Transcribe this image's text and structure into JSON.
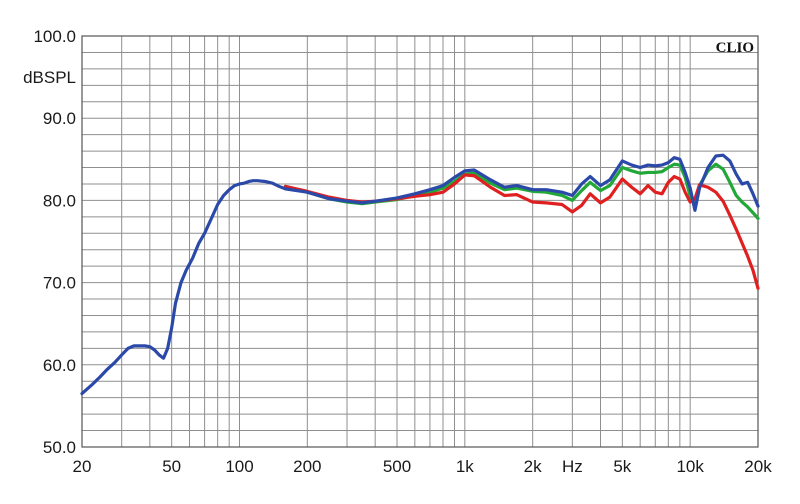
{
  "chart_data": {
    "type": "line",
    "title": "",
    "xlabel": "Hz",
    "ylabel": "dBSPL",
    "brand": "CLIO",
    "x_scale": "log",
    "xlim": [
      20,
      20000
    ],
    "ylim": [
      50,
      100
    ],
    "grid": true,
    "y_ticks": [
      {
        "value": 100,
        "label": "100.0"
      },
      {
        "value": 90,
        "label": "90.0"
      },
      {
        "value": 80,
        "label": "80.0"
      },
      {
        "value": 70,
        "label": "70.0"
      },
      {
        "value": 60,
        "label": "60.0"
      },
      {
        "value": 50,
        "label": "50.0"
      }
    ],
    "x_ticks": [
      {
        "value": 20,
        "label": "20"
      },
      {
        "value": 50,
        "label": "50"
      },
      {
        "value": 100,
        "label": "100"
      },
      {
        "value": 200,
        "label": "200"
      },
      {
        "value": 500,
        "label": "500"
      },
      {
        "value": 1000,
        "label": "1k"
      },
      {
        "value": 2000,
        "label": "2k"
      },
      {
        "value": 5000,
        "label": "5k"
      },
      {
        "value": 10000,
        "label": "10k"
      },
      {
        "value": 20000,
        "label": "20k"
      }
    ],
    "series": [
      {
        "color": "#22a838",
        "x": [
          160,
          200,
          250,
          300,
          350,
          400,
          500,
          600,
          700,
          800,
          900,
          1000,
          1100,
          1300,
          1500,
          1700,
          2000,
          2300,
          2700,
          3000,
          3300,
          3600,
          4000,
          4400,
          5000,
          5500,
          6000,
          6500,
          7000,
          7500,
          8000,
          8500,
          9000,
          9500,
          10000,
          10500,
          11000,
          12000,
          13000,
          14000,
          15000,
          16000,
          17000,
          18000,
          19000,
          20000
        ],
        "y": [
          81.7,
          81.0,
          80.2,
          79.8,
          79.6,
          79.8,
          80.1,
          80.6,
          81.0,
          81.5,
          82.3,
          83.2,
          83.3,
          82.1,
          81.3,
          81.5,
          81.1,
          81.0,
          80.6,
          80.0,
          81.2,
          82.2,
          81.2,
          81.8,
          84.0,
          83.6,
          83.3,
          83.4,
          83.4,
          83.5,
          84.0,
          84.4,
          84.3,
          82.8,
          80.5,
          79.5,
          81.8,
          83.6,
          84.4,
          83.8,
          82.2,
          80.6,
          79.8,
          79.2,
          78.5,
          77.8
        ]
      },
      {
        "color": "#e02020",
        "x": [
          160,
          200,
          250,
          300,
          350,
          400,
          500,
          600,
          700,
          800,
          900,
          1000,
          1100,
          1300,
          1500,
          1700,
          2000,
          2300,
          2700,
          3000,
          3300,
          3600,
          4000,
          4400,
          5000,
          5500,
          6000,
          6500,
          7000,
          7500,
          8000,
          8500,
          9000,
          9500,
          10000,
          10500,
          11000,
          12000,
          13000,
          14000,
          15000,
          16000,
          17000,
          18000,
          19000,
          20000
        ],
        "y": [
          81.7,
          81.1,
          80.4,
          80.0,
          79.8,
          79.9,
          80.2,
          80.5,
          80.7,
          81.0,
          82.0,
          83.1,
          83.0,
          81.6,
          80.6,
          80.7,
          79.8,
          79.7,
          79.5,
          78.6,
          79.4,
          80.8,
          79.7,
          80.4,
          82.6,
          81.6,
          80.8,
          81.8,
          81.0,
          80.8,
          82.2,
          82.9,
          82.6,
          81.0,
          79.8,
          80.2,
          81.9,
          81.6,
          81.0,
          79.9,
          78.2,
          76.5,
          74.8,
          73.2,
          71.5,
          69.3
        ]
      },
      {
        "color": "#2b49a8",
        "x": [
          20,
          22,
          24,
          26,
          28,
          30,
          32,
          34,
          36,
          38,
          40,
          42,
          44,
          46,
          48,
          50,
          52,
          55,
          58,
          62,
          66,
          70,
          75,
          80,
          85,
          90,
          95,
          100,
          105,
          110,
          115,
          120,
          130,
          140,
          150,
          160,
          200,
          250,
          300,
          350,
          400,
          500,
          600,
          700,
          800,
          900,
          1000,
          1100,
          1300,
          1500,
          1700,
          2000,
          2300,
          2700,
          3000,
          3300,
          3600,
          4000,
          4400,
          5000,
          5500,
          6000,
          6500,
          7000,
          7500,
          8000,
          8500,
          9000,
          9500,
          10000,
          10500,
          11000,
          12000,
          13000,
          14000,
          15000,
          16000,
          17000,
          18000,
          19000,
          20000
        ],
        "y": [
          56.5,
          57.5,
          58.5,
          59.5,
          60.3,
          61.2,
          62.0,
          62.3,
          62.3,
          62.3,
          62.2,
          61.8,
          61.2,
          60.8,
          62.0,
          64.5,
          67.5,
          70.0,
          71.5,
          73.0,
          74.8,
          76.0,
          77.8,
          79.5,
          80.6,
          81.3,
          81.8,
          82.0,
          82.1,
          82.3,
          82.4,
          82.4,
          82.3,
          82.1,
          81.7,
          81.4,
          81.0,
          80.2,
          79.9,
          79.7,
          79.9,
          80.3,
          80.8,
          81.3,
          81.8,
          82.8,
          83.6,
          83.7,
          82.5,
          81.6,
          81.8,
          81.3,
          81.3,
          81.0,
          80.6,
          82.0,
          82.9,
          81.8,
          82.5,
          84.8,
          84.3,
          84.0,
          84.3,
          84.2,
          84.3,
          84.6,
          85.2,
          85.0,
          83.4,
          81.5,
          78.8,
          81.5,
          84.0,
          85.4,
          85.5,
          84.8,
          83.2,
          82.0,
          82.2,
          80.8,
          79.3
        ]
      }
    ]
  }
}
